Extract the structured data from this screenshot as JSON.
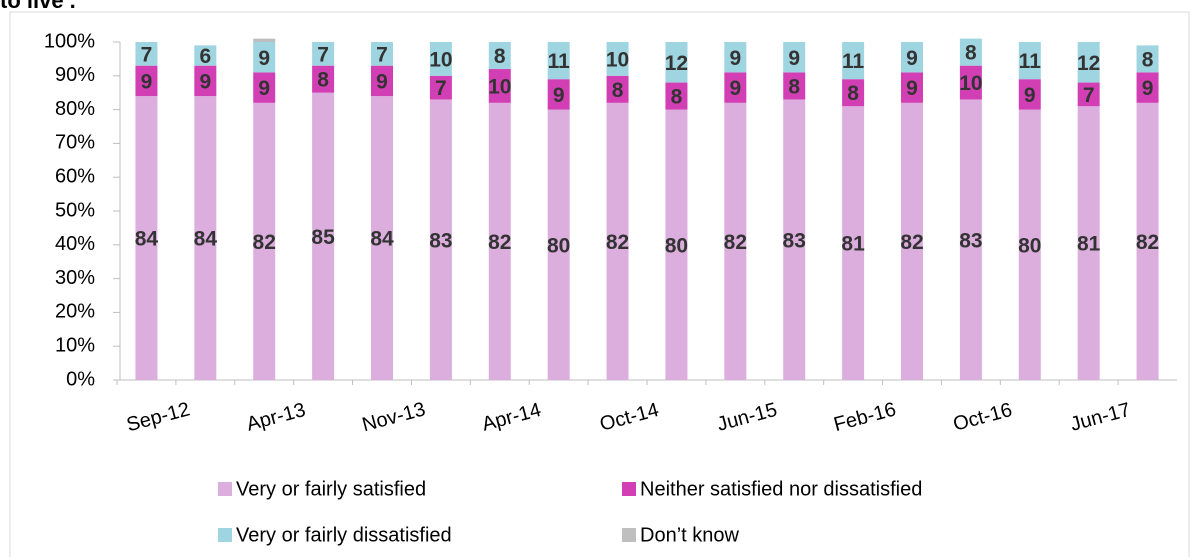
{
  "chart_data": {
    "type": "stacked_bar",
    "title": "to live’.",
    "categories": [
      "Sep-12",
      null,
      "Apr-13",
      null,
      "Nov-13",
      null,
      "Apr-14",
      null,
      "Oct-14",
      null,
      "Jun-15",
      null,
      "Feb-16",
      null,
      "Oct-16",
      null,
      "Jun-17",
      null
    ],
    "series": [
      {
        "name": "Very or fairly satisfied",
        "color": "#dcaede",
        "values": [
          84,
          84,
          82,
          85,
          84,
          83,
          82,
          80,
          82,
          80,
          82,
          83,
          81,
          82,
          83,
          80,
          81,
          82
        ]
      },
      {
        "name": "Neither satisfied nor dissatisfied",
        "color": "#d23fb5",
        "values": [
          9,
          9,
          9,
          8,
          9,
          7,
          10,
          9,
          8,
          8,
          9,
          8,
          8,
          9,
          10,
          9,
          7,
          9
        ]
      },
      {
        "name": "Very or fairly dissatisfied",
        "color": "#9fd5e0",
        "values": [
          7,
          6,
          9,
          7,
          7,
          10,
          8,
          11,
          10,
          12,
          9,
          9,
          11,
          9,
          8,
          11,
          12,
          8
        ]
      },
      {
        "name": "Don’t know",
        "color": "#bfbfbf",
        "values": [
          0,
          0,
          1,
          0,
          0,
          0,
          0,
          0,
          0,
          0,
          0,
          0,
          0,
          0,
          0,
          0,
          0,
          0
        ]
      }
    ],
    "labeled_series": 3,
    "ylim": [
      0,
      100
    ],
    "yticks": [
      {
        "value": 0,
        "label": "0%"
      },
      {
        "value": 10,
        "label": "10%"
      },
      {
        "value": 20,
        "label": "20%"
      },
      {
        "value": 30,
        "label": "30%"
      },
      {
        "value": 40,
        "label": "40%"
      },
      {
        "value": 50,
        "label": "50%"
      },
      {
        "value": 60,
        "label": "60%"
      },
      {
        "value": 70,
        "label": "70%"
      },
      {
        "value": 80,
        "label": "80%"
      },
      {
        "value": 90,
        "label": "90%"
      },
      {
        "value": 100,
        "label": "100%"
      }
    ],
    "grid": false,
    "legend": "bottom"
  }
}
